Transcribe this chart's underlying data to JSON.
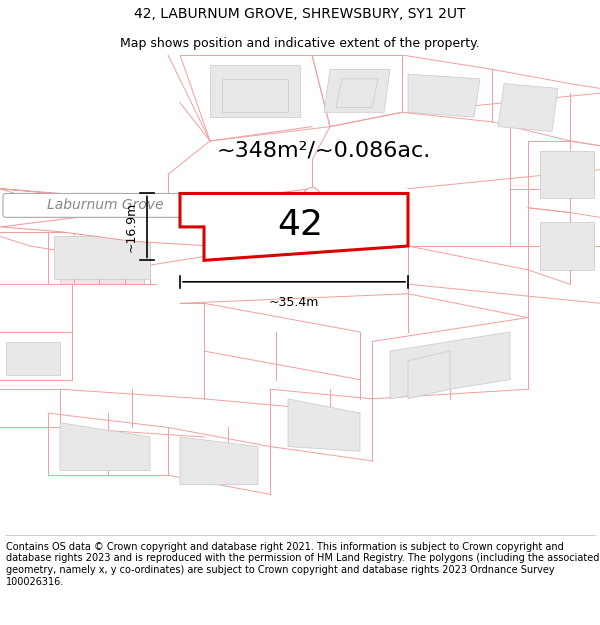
{
  "title_line1": "42, LABURNUM GROVE, SHREWSBURY, SY1 2UT",
  "title_line2": "Map shows position and indicative extent of the property.",
  "area_text": "~348m²/~0.086ac.",
  "label_42": "42",
  "label_street": "Laburnum Grove",
  "dim_width": "~35.4m",
  "dim_height": "~16.9m",
  "footer_text": "Contains OS data © Crown copyright and database right 2021. This information is subject to Crown copyright and database rights 2023 and is reproduced with the permission of HM Land Registry. The polygons (including the associated geometry, namely x, y co-ordinates) are subject to Crown copyright and database rights 2023 Ordnance Survey 100026316.",
  "bg_color": "#ffffff",
  "map_bg": "#ffffff",
  "lot_line_color": "#f0a0a0",
  "building_fill": "#e8e8e8",
  "building_edge": "#c8c8c8",
  "plot_fill": "#ffffff",
  "plot_edge_color": "#dd0000",
  "title_fontsize": 10,
  "subtitle_fontsize": 9,
  "area_fontsize": 16,
  "label42_fontsize": 26,
  "dim_fontsize": 9,
  "footer_fontsize": 7.0,
  "street_label_fontsize": 10
}
